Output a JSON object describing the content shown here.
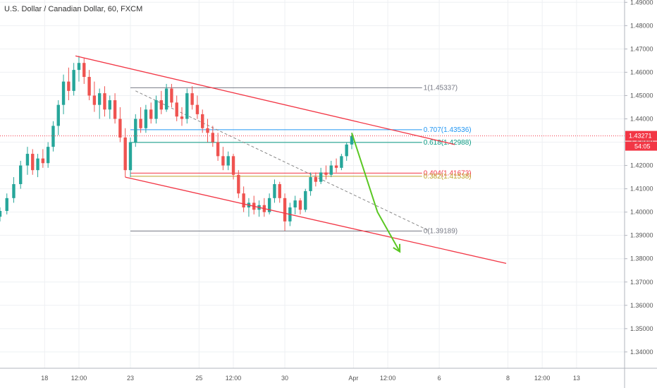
{
  "header": {
    "title": "U.S. Dollar / Canadian Dollar, 60, FXCM"
  },
  "chart_data": {
    "type": "candlestick",
    "title": "U.S. Dollar / Canadian Dollar, 60, FXCM",
    "ylim": [
      1.333,
      1.491
    ],
    "y_ticks": [
      "1.49000",
      "1.48000",
      "1.47000",
      "1.46000",
      "1.45000",
      "1.44000",
      "1.43000",
      "1.42000",
      "1.41000",
      "1.40000",
      "1.39000",
      "1.38000",
      "1.37000",
      "1.36000",
      "1.35000",
      "1.34000"
    ],
    "y_tick_values": [
      1.49,
      1.48,
      1.47,
      1.46,
      1.45,
      1.44,
      1.43,
      1.42,
      1.41,
      1.4,
      1.39,
      1.38,
      1.37,
      1.36,
      1.35,
      1.34
    ],
    "x_tick_labels": [
      "18",
      "12:00",
      "23",
      "25",
      "12:00",
      "30",
      "Apr",
      "12:00",
      "6",
      "8",
      "12:00",
      "13"
    ],
    "x_tick_positions": [
      0.5,
      1.5,
      3.0,
      5.0,
      6.0,
      7.5,
      9.5,
      10.5,
      12.0,
      14.0,
      15.0,
      16.0
    ],
    "xlim": [
      -0.8,
      17.4
    ],
    "current_price": {
      "label": "1.43271",
      "value": 1.43271,
      "color": "#f23645"
    },
    "countdown": "54:05",
    "series": [
      {
        "values": [
          [
            -0.8,
            1.398,
            1.402,
            1.396,
            1.4005
          ],
          [
            -0.6,
            1.4005,
            1.408,
            1.399,
            1.406
          ],
          [
            -0.4,
            1.406,
            1.415,
            1.404,
            1.412
          ],
          [
            -0.2,
            1.412,
            1.422,
            1.41,
            1.42
          ],
          [
            0.0,
            1.42,
            1.428,
            1.416,
            1.425
          ],
          [
            0.15,
            1.425,
            1.427,
            1.416,
            1.418
          ],
          [
            0.3,
            1.418,
            1.425,
            1.415,
            1.423
          ],
          [
            0.45,
            1.423,
            1.427,
            1.419,
            1.421
          ],
          [
            0.6,
            1.421,
            1.43,
            1.419,
            1.428
          ],
          [
            0.75,
            1.428,
            1.439,
            1.426,
            1.437
          ],
          [
            0.9,
            1.437,
            1.448,
            1.433,
            1.446
          ],
          [
            1.05,
            1.446,
            1.459,
            1.442,
            1.456
          ],
          [
            1.2,
            1.456,
            1.462,
            1.448,
            1.452
          ],
          [
            1.35,
            1.452,
            1.464,
            1.45,
            1.461
          ],
          [
            1.5,
            1.461,
            1.467,
            1.456,
            1.464
          ],
          [
            1.65,
            1.464,
            1.466,
            1.455,
            1.458
          ],
          [
            1.8,
            1.458,
            1.461,
            1.448,
            1.45
          ],
          [
            1.95,
            1.45,
            1.456,
            1.443,
            1.446
          ],
          [
            2.1,
            1.446,
            1.453,
            1.44,
            1.451
          ],
          [
            2.25,
            1.451,
            1.454,
            1.441,
            1.444
          ],
          [
            2.4,
            1.444,
            1.45,
            1.44,
            1.448
          ],
          [
            2.55,
            1.448,
            1.451,
            1.438,
            1.44
          ],
          [
            2.7,
            1.44,
            1.445,
            1.43,
            1.432
          ],
          [
            2.85,
            1.432,
            1.436,
            1.415,
            1.418
          ],
          [
            3.0,
            1.418,
            1.432,
            1.415,
            1.43
          ],
          [
            3.15,
            1.43,
            1.442,
            1.428,
            1.44
          ],
          [
            3.3,
            1.44,
            1.445,
            1.434,
            1.436
          ],
          [
            3.45,
            1.436,
            1.446,
            1.434,
            1.444
          ],
          [
            3.6,
            1.444,
            1.447,
            1.438,
            1.44
          ],
          [
            3.75,
            1.44,
            1.45,
            1.438,
            1.448
          ],
          [
            3.9,
            1.448,
            1.452,
            1.442,
            1.444
          ],
          [
            4.05,
            1.444,
            1.455,
            1.443,
            1.453
          ],
          [
            4.2,
            1.453,
            1.455,
            1.445,
            1.447
          ],
          [
            4.35,
            1.447,
            1.45,
            1.439,
            1.441
          ],
          [
            4.5,
            1.441,
            1.445,
            1.437,
            1.44
          ],
          [
            4.65,
            1.44,
            1.453,
            1.438,
            1.451
          ],
          [
            4.8,
            1.451,
            1.454,
            1.444,
            1.446
          ],
          [
            4.95,
            1.446,
            1.45,
            1.44,
            1.442
          ],
          [
            5.1,
            1.442,
            1.444,
            1.434,
            1.436
          ],
          [
            5.25,
            1.436,
            1.44,
            1.43,
            1.434
          ],
          [
            5.4,
            1.434,
            1.437,
            1.428,
            1.43
          ],
          [
            5.55,
            1.43,
            1.434,
            1.422,
            1.424
          ],
          [
            5.7,
            1.424,
            1.428,
            1.418,
            1.42
          ],
          [
            5.85,
            1.42,
            1.426,
            1.418,
            1.424
          ],
          [
            6.0,
            1.424,
            1.425,
            1.414,
            1.416
          ],
          [
            6.15,
            1.416,
            1.418,
            1.406,
            1.408
          ],
          [
            6.3,
            1.408,
            1.411,
            1.4,
            1.402
          ],
          [
            6.45,
            1.402,
            1.406,
            1.398,
            1.404
          ],
          [
            6.6,
            1.404,
            1.407,
            1.399,
            1.401
          ],
          [
            6.75,
            1.401,
            1.405,
            1.398,
            1.403
          ],
          [
            6.9,
            1.403,
            1.406,
            1.398,
            1.4
          ],
          [
            7.05,
            1.4,
            1.408,
            1.399,
            1.406
          ],
          [
            7.2,
            1.406,
            1.414,
            1.404,
            1.412
          ],
          [
            7.35,
            1.412,
            1.413,
            1.404,
            1.406
          ],
          [
            7.5,
            1.406,
            1.408,
            1.392,
            1.396
          ],
          [
            7.65,
            1.396,
            1.404,
            1.394,
            1.402
          ],
          [
            7.8,
            1.402,
            1.407,
            1.399,
            1.405
          ],
          [
            7.95,
            1.405,
            1.406,
            1.399,
            1.401
          ],
          [
            8.1,
            1.401,
            1.41,
            1.4,
            1.409
          ],
          [
            8.25,
            1.409,
            1.417,
            1.407,
            1.415
          ],
          [
            8.4,
            1.415,
            1.417,
            1.411,
            1.413
          ],
          [
            8.55,
            1.413,
            1.419,
            1.412,
            1.417
          ],
          [
            8.7,
            1.417,
            1.42,
            1.414,
            1.416
          ],
          [
            8.85,
            1.416,
            1.422,
            1.415,
            1.42
          ],
          [
            9.0,
            1.42,
            1.423,
            1.417,
            1.419
          ],
          [
            9.15,
            1.419,
            1.425,
            1.418,
            1.424
          ],
          [
            9.3,
            1.424,
            1.43,
            1.422,
            1.429
          ],
          [
            9.45,
            1.429,
            1.434,
            1.427,
            1.4327
          ]
        ]
      }
    ],
    "channel_upper": {
      "from": [
        1.4,
        1.467
      ],
      "to": [
        12.45,
        1.429
      ],
      "color": "#f23645"
    },
    "channel_lower": {
      "from": [
        2.85,
        1.415
      ],
      "to": [
        13.95,
        1.378
      ],
      "color": "#f23645"
    },
    "fib_diagonal": {
      "from": [
        3.15,
        1.452
      ],
      "to": [
        11.7,
        1.392
      ],
      "color": "#888888"
    },
    "fib_levels": [
      {
        "label": "1(1.45337)",
        "value": 1.45337,
        "color": "#787b86"
      },
      {
        "label": "0.707(1.43536)",
        "value": 1.43536,
        "color": "#2196f3"
      },
      {
        "label": "0.618(1.42988)",
        "value": 1.42988,
        "color": "#089981"
      },
      {
        "label": "0.404(1.41673)",
        "value": 1.41673,
        "color": "#f23645"
      },
      {
        "label": "0.382(1.41538)",
        "value": 1.41538,
        "color": "#bfa22a"
      },
      {
        "label": "0(1.39189)",
        "value": 1.39189,
        "color": "#787b86"
      }
    ],
    "fib_x_range": [
      3.0,
      11.5
    ],
    "arrow": {
      "points": [
        [
          9.45,
          1.434
        ],
        [
          10.2,
          1.4
        ],
        [
          10.85,
          1.383
        ]
      ],
      "color": "#5ac723"
    },
    "colors": {
      "up": "#26a69a",
      "down": "#ef5350",
      "grid": "#eef0f3",
      "axis_text": "#555555"
    }
  }
}
